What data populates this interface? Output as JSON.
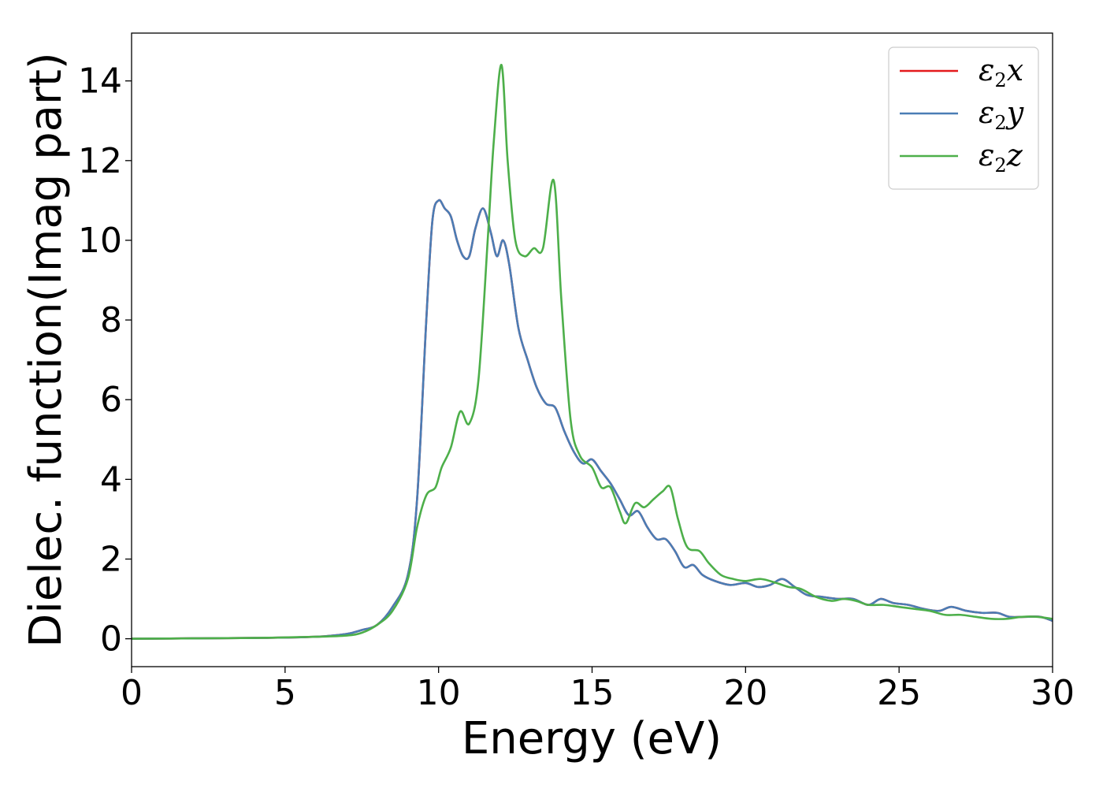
{
  "chart_data": {
    "type": "line",
    "title": "",
    "xlabel": "Energy (eV)",
    "ylabel": "Dielec. function(Imag part)",
    "xlim": [
      0,
      30
    ],
    "ylim": [
      -0.7,
      15.2
    ],
    "xticks": [
      0,
      5,
      10,
      15,
      20,
      25,
      30
    ],
    "yticks": [
      0,
      2,
      4,
      6,
      8,
      10,
      12,
      14
    ],
    "grid": false,
    "legend_position": "top-right",
    "legend": [
      {
        "base": "ε",
        "sub": "2",
        "var": "x",
        "color": "#e41a1c"
      },
      {
        "base": "ε",
        "sub": "2",
        "var": "y",
        "color": "#4a7db5"
      },
      {
        "base": "ε",
        "sub": "2",
        "var": "z",
        "color": "#4daf4a"
      }
    ],
    "series": [
      {
        "name": "ε2x",
        "color": "#e41a1c",
        "x": [
          0,
          2,
          4,
          6,
          7,
          7.5,
          8,
          8.5,
          9,
          9.3,
          9.6,
          9.8,
          10.0,
          10.2,
          10.4,
          10.6,
          10.8,
          11.0,
          11.2,
          11.45,
          11.7,
          11.9,
          12.1,
          12.3,
          12.6,
          12.9,
          13.2,
          13.5,
          13.8,
          14.1,
          14.4,
          14.7,
          15.0,
          15.3,
          15.6,
          15.9,
          16.2,
          16.5,
          16.8,
          17.1,
          17.4,
          17.7,
          18.0,
          18.3,
          18.6,
          19.0,
          19.5,
          20.0,
          20.4,
          20.8,
          21.2,
          21.6,
          22.0,
          22.5,
          23.0,
          23.5,
          24.0,
          24.4,
          24.8,
          25.3,
          25.8,
          26.3,
          26.7,
          27.2,
          27.7,
          28.2,
          28.6,
          29.1,
          29.6,
          30.0
        ],
        "values": [
          0.0,
          0.01,
          0.02,
          0.05,
          0.12,
          0.22,
          0.35,
          0.8,
          1.6,
          3.5,
          8.0,
          10.5,
          11.0,
          10.8,
          10.6,
          10.0,
          9.6,
          9.6,
          10.3,
          10.8,
          10.2,
          9.6,
          10.0,
          9.4,
          7.8,
          7.0,
          6.3,
          5.9,
          5.8,
          5.2,
          4.7,
          4.4,
          4.5,
          4.2,
          3.9,
          3.5,
          3.1,
          3.2,
          2.8,
          2.5,
          2.5,
          2.2,
          1.8,
          1.85,
          1.6,
          1.45,
          1.35,
          1.4,
          1.3,
          1.35,
          1.5,
          1.3,
          1.1,
          1.05,
          1.0,
          1.0,
          0.85,
          1.0,
          0.9,
          0.85,
          0.75,
          0.7,
          0.8,
          0.7,
          0.65,
          0.65,
          0.55,
          0.55,
          0.55,
          0.45
        ]
      },
      {
        "name": "ε2y",
        "color": "#4a7db5",
        "x": [
          0,
          2,
          4,
          6,
          7,
          7.5,
          8,
          8.5,
          9,
          9.3,
          9.6,
          9.8,
          10.0,
          10.2,
          10.4,
          10.6,
          10.8,
          11.0,
          11.2,
          11.45,
          11.7,
          11.9,
          12.1,
          12.3,
          12.6,
          12.9,
          13.2,
          13.5,
          13.8,
          14.1,
          14.4,
          14.7,
          15.0,
          15.3,
          15.6,
          15.9,
          16.2,
          16.5,
          16.8,
          17.1,
          17.4,
          17.7,
          18.0,
          18.3,
          18.6,
          19.0,
          19.5,
          20.0,
          20.4,
          20.8,
          21.2,
          21.6,
          22.0,
          22.5,
          23.0,
          23.5,
          24.0,
          24.4,
          24.8,
          25.3,
          25.8,
          26.3,
          26.7,
          27.2,
          27.7,
          28.2,
          28.6,
          29.1,
          29.6,
          30.0
        ],
        "values": [
          0.0,
          0.01,
          0.02,
          0.05,
          0.12,
          0.22,
          0.35,
          0.8,
          1.6,
          3.5,
          8.0,
          10.5,
          11.0,
          10.8,
          10.6,
          10.0,
          9.6,
          9.6,
          10.3,
          10.8,
          10.2,
          9.6,
          10.0,
          9.4,
          7.8,
          7.0,
          6.3,
          5.9,
          5.8,
          5.2,
          4.7,
          4.4,
          4.5,
          4.2,
          3.9,
          3.5,
          3.1,
          3.2,
          2.8,
          2.5,
          2.5,
          2.2,
          1.8,
          1.85,
          1.6,
          1.45,
          1.35,
          1.4,
          1.3,
          1.35,
          1.5,
          1.3,
          1.1,
          1.05,
          1.0,
          1.0,
          0.85,
          1.0,
          0.9,
          0.85,
          0.75,
          0.7,
          0.8,
          0.7,
          0.65,
          0.65,
          0.55,
          0.55,
          0.55,
          0.45
        ]
      },
      {
        "name": "ε2z",
        "color": "#4daf4a",
        "x": [
          0,
          2,
          4,
          6,
          7,
          7.5,
          8,
          8.5,
          9,
          9.3,
          9.6,
          9.9,
          10.1,
          10.4,
          10.7,
          11.0,
          11.3,
          11.6,
          11.8,
          12.05,
          12.25,
          12.5,
          12.8,
          13.1,
          13.4,
          13.75,
          14.0,
          14.3,
          14.6,
          15.0,
          15.3,
          15.6,
          15.9,
          16.1,
          16.4,
          16.7,
          17.0,
          17.3,
          17.55,
          17.8,
          18.1,
          18.5,
          18.8,
          19.2,
          19.6,
          20.0,
          20.5,
          21.0,
          21.4,
          21.8,
          22.3,
          22.8,
          23.2,
          23.6,
          24.0,
          24.5,
          25.0,
          25.5,
          26.0,
          26.5,
          27.0,
          27.5,
          28.0,
          28.5,
          29.0,
          29.5,
          30.0
        ],
        "values": [
          0.0,
          0.01,
          0.02,
          0.05,
          0.08,
          0.15,
          0.35,
          0.7,
          1.5,
          2.8,
          3.6,
          3.8,
          4.3,
          4.8,
          5.7,
          5.4,
          6.5,
          10.0,
          12.5,
          14.4,
          12.0,
          10.0,
          9.6,
          9.8,
          9.8,
          11.5,
          8.5,
          5.5,
          4.6,
          4.3,
          3.8,
          3.8,
          3.2,
          2.9,
          3.4,
          3.3,
          3.5,
          3.7,
          3.8,
          3.0,
          2.3,
          2.2,
          1.9,
          1.6,
          1.5,
          1.45,
          1.5,
          1.4,
          1.3,
          1.25,
          1.05,
          0.95,
          1.0,
          0.95,
          0.85,
          0.85,
          0.8,
          0.75,
          0.7,
          0.6,
          0.6,
          0.55,
          0.5,
          0.5,
          0.55,
          0.55,
          0.5
        ]
      }
    ]
  }
}
